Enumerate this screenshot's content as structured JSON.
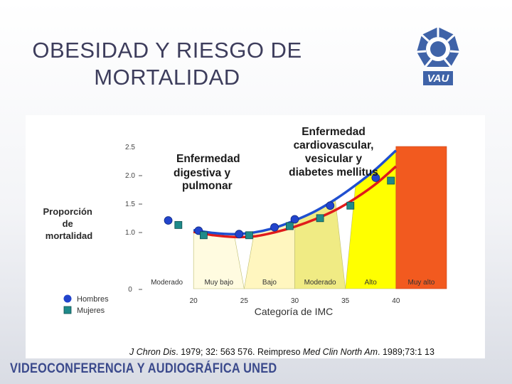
{
  "slide": {
    "title_line1": "OBESIDAD Y RIESGO DE",
    "title_line2": "MORTALIDAD",
    "logo_text": "VAU",
    "footer": "VIDEOCONFERENCIA Y AUDIOGRÁFICA UNED"
  },
  "colors": {
    "title": "#3d3d5c",
    "hombres": "#2244cc",
    "mujeres": "#1f8a8a",
    "curve_hombres": "#1f4fd0",
    "curve_mujeres": "#e01b1b",
    "band_muy_bajo": "#fffbe0",
    "band_bajo": "#fff6bf",
    "band_moderado": "#f0eb84",
    "band_alto": "#ffff00",
    "band_muy_alto": "#f25a1f"
  },
  "chart_data": {
    "type": "line",
    "xlabel": "Categoría de IMC",
    "ylabel": "Proporción de mortalidad",
    "xlim": [
      15,
      45
    ],
    "ylim": [
      0,
      2.5
    ],
    "x_ticks": [
      "20",
      "25",
      "30",
      "35",
      "40"
    ],
    "y_ticks": [
      "2.5",
      "2.0",
      "1.5",
      "1.0",
      "0"
    ],
    "bands": [
      {
        "label": "Moderado",
        "from": 15,
        "to": 20
      },
      {
        "label": "Muy bajo",
        "from": 20,
        "to": 25
      },
      {
        "label": "Bajo",
        "from": 25,
        "to": 30
      },
      {
        "label": "Moderado",
        "from": 30,
        "to": 35
      },
      {
        "label": "Alto",
        "from": 35,
        "to": 40
      },
      {
        "label": "Muy alto",
        "from": 40,
        "to": 45
      }
    ],
    "annotations": [
      {
        "lines": [
          "Enfermedad",
          "digestiva y",
          "pulmonar"
        ]
      },
      {
        "lines": [
          "Enfermedad",
          "cardiovascular,",
          "vesicular y",
          "diabetes mellitus"
        ]
      }
    ],
    "series": [
      {
        "name": "Hombres",
        "marker": "circle",
        "points": [
          [
            17.5,
            1.2
          ],
          [
            20.5,
            1.02
          ],
          [
            24.5,
            0.96
          ],
          [
            28,
            1.08
          ],
          [
            30,
            1.22
          ],
          [
            33.5,
            1.46
          ],
          [
            38,
            1.95
          ]
        ],
        "curve": [
          [
            20,
            1.03
          ],
          [
            22,
            0.98
          ],
          [
            24,
            0.96
          ],
          [
            26,
            0.99
          ],
          [
            28,
            1.07
          ],
          [
            30,
            1.2
          ],
          [
            32,
            1.36
          ],
          [
            34,
            1.57
          ],
          [
            36,
            1.82
          ],
          [
            38,
            2.1
          ],
          [
            40,
            2.43
          ]
        ]
      },
      {
        "name": "Mujeres",
        "marker": "square",
        "points": [
          [
            18.5,
            1.12
          ],
          [
            21,
            0.94
          ],
          [
            25.5,
            0.94
          ],
          [
            29.5,
            1.1
          ],
          [
            32.5,
            1.24
          ],
          [
            35.5,
            1.46
          ],
          [
            39.5,
            1.9
          ]
        ],
        "curve": [
          [
            20,
            1.0
          ],
          [
            22,
            0.94
          ],
          [
            24,
            0.91
          ],
          [
            26,
            0.92
          ],
          [
            28,
            0.99
          ],
          [
            30,
            1.09
          ],
          [
            32,
            1.22
          ],
          [
            34,
            1.38
          ],
          [
            36,
            1.59
          ],
          [
            38,
            1.84
          ],
          [
            40,
            2.15
          ]
        ]
      }
    ],
    "legend": {
      "position": "bottom-left",
      "items": [
        "Hombres",
        "Mujeres"
      ]
    },
    "citation_parts": [
      {
        "text": "J Chron Dis",
        "italic": true
      },
      {
        "text": ". 1979; 32: 563 576. Reimpreso ",
        "italic": false
      },
      {
        "text": "Med Clin North Am",
        "italic": true
      },
      {
        "text": ". 1989;73:1 13",
        "italic": false
      }
    ]
  }
}
